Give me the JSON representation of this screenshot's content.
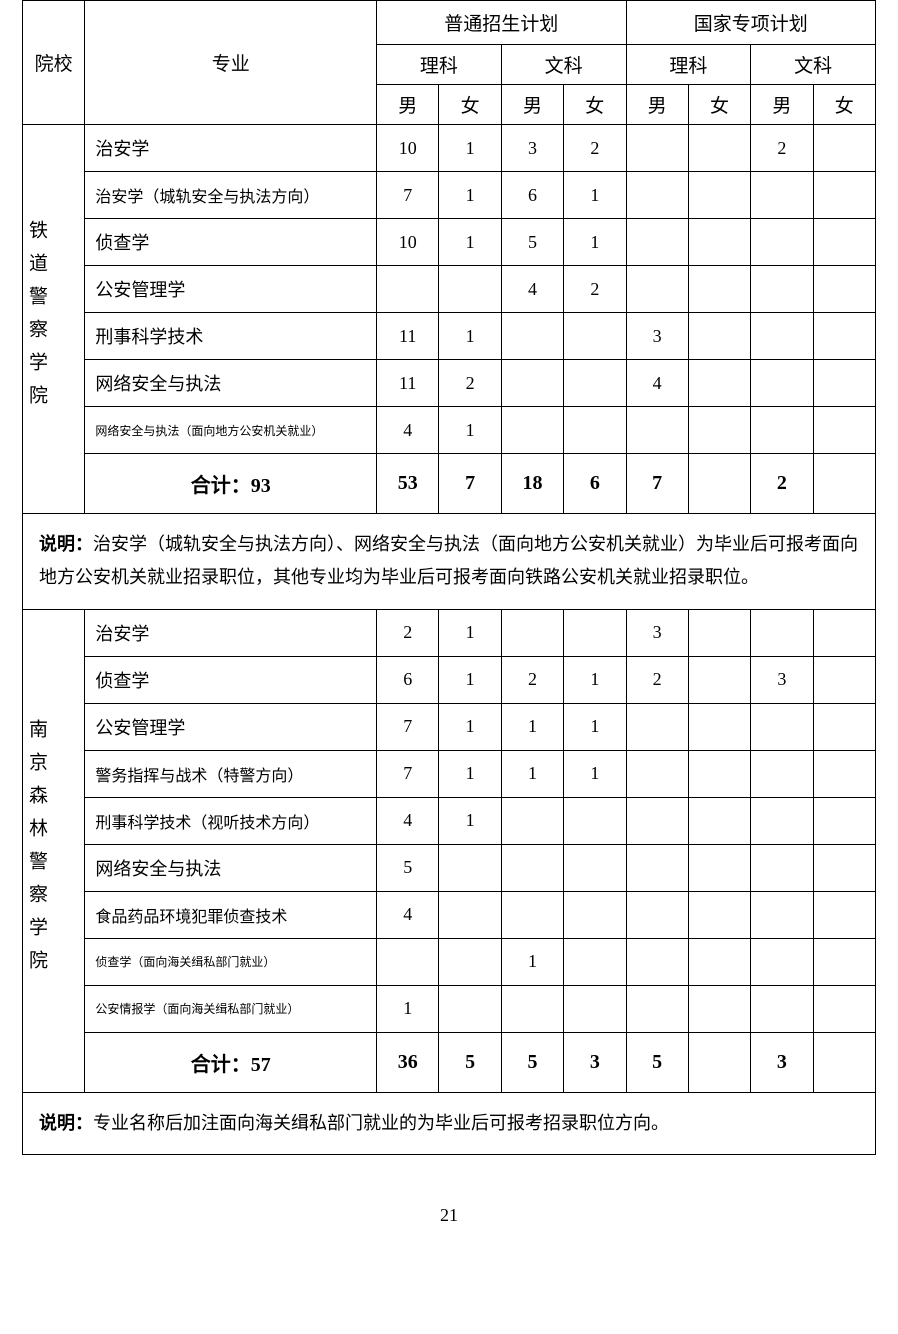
{
  "page_number": "21",
  "table": {
    "background_color": "#ffffff",
    "border_color": "#000000",
    "text_color": "#000000",
    "header": {
      "col_school": "院校",
      "col_major": "专业",
      "plan_general": "普通招生计划",
      "plan_special": "国家专项计划",
      "science": "理科",
      "arts": "文科",
      "male": "男",
      "female": "女"
    },
    "schools": [
      {
        "name": "铁道警察学院",
        "rows": [
          {
            "major": "治安学",
            "size": "normal",
            "vals": [
              "10",
              "1",
              "3",
              "2",
              "",
              "",
              "2",
              ""
            ]
          },
          {
            "major": "治安学（城轨安全与执法方向）",
            "size": "smaller",
            "vals": [
              "7",
              "1",
              "6",
              "1",
              "",
              "",
              "",
              ""
            ]
          },
          {
            "major": "侦查学",
            "size": "normal",
            "vals": [
              "10",
              "1",
              "5",
              "1",
              "",
              "",
              "",
              ""
            ]
          },
          {
            "major": "公安管理学",
            "size": "normal",
            "vals": [
              "",
              "",
              "4",
              "2",
              "",
              "",
              "",
              ""
            ]
          },
          {
            "major": "刑事科学技术",
            "size": "normal",
            "vals": [
              "11",
              "1",
              "",
              "",
              "3",
              "",
              "",
              ""
            ]
          },
          {
            "major": "网络安全与执法",
            "size": "normal",
            "vals": [
              "11",
              "2",
              "",
              "",
              "4",
              "",
              "",
              ""
            ]
          },
          {
            "major": "网络安全与执法（面向地方公安机关就业）",
            "size": "smallest",
            "vals": [
              "4",
              "1",
              "",
              "",
              "",
              "",
              "",
              ""
            ]
          }
        ],
        "total": {
          "label": "合计：93",
          "vals": [
            "53",
            "7",
            "18",
            "6",
            "7",
            "",
            "2",
            ""
          ]
        },
        "note_lead": "说明：",
        "note": "治安学（城轨安全与执法方向）、网络安全与执法（面向地方公安机关就业）为毕业后可报考面向地方公安机关就业招录职位，其他专业均为毕业后可报考面向铁路公安机关就业招录职位。"
      },
      {
        "name": "南京森林警察学院",
        "rows": [
          {
            "major": "治安学",
            "size": "normal",
            "vals": [
              "2",
              "1",
              "",
              "",
              "3",
              "",
              "",
              ""
            ]
          },
          {
            "major": "侦查学",
            "size": "normal",
            "vals": [
              "6",
              "1",
              "2",
              "1",
              "2",
              "",
              "3",
              ""
            ]
          },
          {
            "major": "公安管理学",
            "size": "normal",
            "vals": [
              "7",
              "1",
              "1",
              "1",
              "",
              "",
              "",
              ""
            ]
          },
          {
            "major": "警务指挥与战术（特警方向）",
            "size": "smaller",
            "vals": [
              "7",
              "1",
              "1",
              "1",
              "",
              "",
              "",
              ""
            ]
          },
          {
            "major": "刑事科学技术（视听技术方向）",
            "size": "smaller",
            "vals": [
              "4",
              "1",
              "",
              "",
              "",
              "",
              "",
              ""
            ]
          },
          {
            "major": "网络安全与执法",
            "size": "normal",
            "vals": [
              "5",
              "",
              "",
              "",
              "",
              "",
              "",
              ""
            ]
          },
          {
            "major": "食品药品环境犯罪侦查技术",
            "size": "smaller",
            "vals": [
              "4",
              "",
              "",
              "",
              "",
              "",
              "",
              ""
            ]
          },
          {
            "major": "侦查学（面向海关缉私部门就业）",
            "size": "smallest",
            "vals": [
              "",
              "",
              "1",
              "",
              "",
              "",
              "",
              ""
            ]
          },
          {
            "major": "公安情报学（面向海关缉私部门就业）",
            "size": "smallest",
            "vals": [
              "1",
              "",
              "",
              "",
              "",
              "",
              "",
              ""
            ]
          }
        ],
        "total": {
          "label": "合计：57",
          "vals": [
            "36",
            "5",
            "5",
            "3",
            "5",
            "",
            "3",
            ""
          ]
        },
        "note_lead": "说明：",
        "note": "专业名称后加注面向海关缉私部门就业的为毕业后可报考招录职位方向。"
      }
    ]
  }
}
